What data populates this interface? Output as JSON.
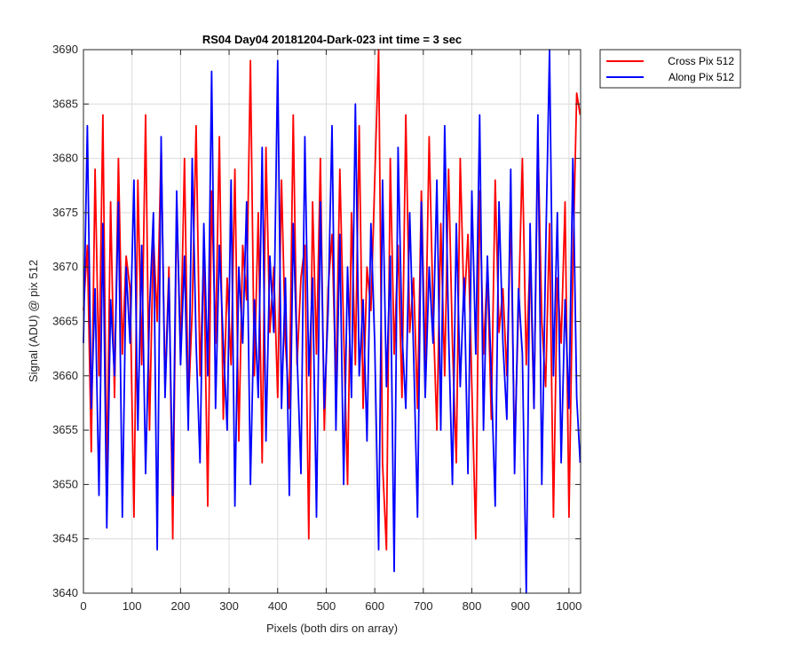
{
  "chart_data": {
    "type": "line",
    "title": "RS04 Day04 20181204-Dark-023 int time = 3 sec",
    "xlabel": "Pixels (both dirs on array)",
    "ylabel": "Signal (ADU) @ pix 512",
    "xlim": [
      0,
      1024
    ],
    "ylim": [
      3640,
      3690
    ],
    "xticks": [
      0,
      100,
      200,
      300,
      400,
      500,
      600,
      700,
      800,
      900,
      1000
    ],
    "yticks": [
      3640,
      3645,
      3650,
      3655,
      3660,
      3665,
      3670,
      3675,
      3680,
      3685,
      3690
    ],
    "grid": true,
    "legend_position": "outside-top-right",
    "series": [
      {
        "name": "Cross Pix 512",
        "color": "#ff0000",
        "x": [
          0,
          8,
          16,
          24,
          32,
          40,
          48,
          56,
          64,
          72,
          80,
          88,
          96,
          104,
          112,
          120,
          128,
          136,
          144,
          152,
          160,
          168,
          176,
          184,
          192,
          200,
          208,
          216,
          224,
          232,
          240,
          248,
          256,
          264,
          272,
          280,
          288,
          296,
          304,
          312,
          320,
          328,
          336,
          344,
          352,
          360,
          368,
          376,
          384,
          392,
          400,
          408,
          416,
          424,
          432,
          440,
          448,
          456,
          464,
          472,
          480,
          488,
          496,
          504,
          512,
          520,
          528,
          536,
          544,
          552,
          560,
          568,
          576,
          584,
          592,
          600,
          608,
          616,
          624,
          632,
          640,
          648,
          656,
          664,
          672,
          680,
          688,
          696,
          704,
          712,
          720,
          728,
          736,
          744,
          752,
          760,
          768,
          776,
          784,
          792,
          800,
          808,
          816,
          824,
          832,
          840,
          848,
          856,
          864,
          872,
          880,
          888,
          896,
          904,
          912,
          920,
          928,
          936,
          944,
          952,
          960,
          968,
          976,
          984,
          992,
          1000,
          1008,
          1016,
          1023
        ],
        "y": [
          3666,
          3672,
          3653,
          3679,
          3660,
          3684,
          3650,
          3676,
          3658,
          3680,
          3662,
          3671,
          3668,
          3647,
          3678,
          3661,
          3684,
          3655,
          3673,
          3665,
          3681,
          3659,
          3670,
          3645,
          3676,
          3662,
          3680,
          3657,
          3666,
          3683,
          3660,
          3671,
          3648,
          3677,
          3663,
          3682,
          3656,
          3669,
          3661,
          3679,
          3654,
          3672,
          3667,
          3689,
          3660,
          3675,
          3652,
          3681,
          3664,
          3670,
          3658,
          3678,
          3663,
          3657,
          3684,
          3661,
          3669,
          3672,
          3645,
          3676,
          3662,
          3680,
          3655,
          3668,
          3673,
          3659,
          3679,
          3664,
          3650,
          3675,
          3661,
          3683,
          3657,
          3670,
          3666,
          3678,
          3690,
          3652,
          3644,
          3680,
          3662,
          3672,
          3658,
          3684,
          3664,
          3669,
          3657,
          3677,
          3661,
          3682,
          3666,
          3655,
          3674,
          3660,
          3679,
          3663,
          3652,
          3680,
          3666,
          3673,
          3659,
          3645,
          3677,
          3662,
          3670,
          3656,
          3678,
          3664,
          3668,
          3660,
          3675,
          3653,
          3666,
          3680,
          3661,
          3671,
          3657,
          3682,
          3665,
          3659,
          3674,
          3647,
          3669,
          3663,
          3676,
          3647,
          3670,
          3686,
          3684
        ]
      },
      {
        "name": "Along Pix 512",
        "color": "#0000ff",
        "x": [
          0,
          8,
          16,
          24,
          32,
          40,
          48,
          56,
          64,
          72,
          80,
          88,
          96,
          104,
          112,
          120,
          128,
          136,
          144,
          152,
          160,
          168,
          176,
          184,
          192,
          200,
          208,
          216,
          224,
          232,
          240,
          248,
          256,
          264,
          272,
          280,
          288,
          296,
          304,
          312,
          320,
          328,
          336,
          344,
          352,
          360,
          368,
          376,
          384,
          392,
          400,
          408,
          416,
          424,
          432,
          440,
          448,
          456,
          464,
          472,
          480,
          488,
          496,
          504,
          512,
          520,
          528,
          536,
          544,
          552,
          560,
          568,
          576,
          584,
          592,
          600,
          608,
          616,
          624,
          632,
          640,
          648,
          656,
          664,
          672,
          680,
          688,
          696,
          704,
          712,
          720,
          728,
          736,
          744,
          752,
          760,
          768,
          776,
          784,
          792,
          800,
          808,
          816,
          824,
          832,
          840,
          848,
          856,
          864,
          872,
          880,
          888,
          896,
          904,
          912,
          920,
          928,
          936,
          944,
          952,
          960,
          968,
          976,
          984,
          992,
          1000,
          1008,
          1016,
          1023
        ],
        "y": [
          3663,
          3683,
          3657,
          3668,
          3649,
          3674,
          3646,
          3667,
          3660,
          3676,
          3647,
          3670,
          3663,
          3678,
          3655,
          3672,
          3651,
          3666,
          3675,
          3644,
          3682,
          3658,
          3669,
          3649,
          3677,
          3661,
          3671,
          3655,
          3680,
          3663,
          3652,
          3674,
          3660,
          3688,
          3657,
          3672,
          3663,
          3655,
          3678,
          3648,
          3670,
          3663,
          3676,
          3650,
          3667,
          3658,
          3681,
          3654,
          3671,
          3664,
          3689,
          3657,
          3669,
          3649,
          3674,
          3662,
          3651,
          3682,
          3660,
          3669,
          3647,
          3676,
          3657,
          3666,
          3683,
          3655,
          3673,
          3650,
          3670,
          3658,
          3685,
          3660,
          3667,
          3654,
          3674,
          3663,
          3644,
          3678,
          3659,
          3671,
          3642,
          3681,
          3664,
          3657,
          3675,
          3662,
          3647,
          3676,
          3658,
          3670,
          3663,
          3678,
          3655,
          3683,
          3664,
          3650,
          3674,
          3659,
          3669,
          3651,
          3677,
          3662,
          3684,
          3655,
          3671,
          3660,
          3648,
          3676,
          3663,
          3656,
          3679,
          3651,
          3668,
          3662,
          3640,
          3674,
          3657,
          3684,
          3650,
          3671,
          3690,
          3660,
          3675,
          3652,
          3667,
          3657,
          3680,
          3658,
          3652
        ]
      }
    ]
  }
}
